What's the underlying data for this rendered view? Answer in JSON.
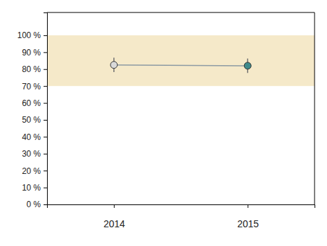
{
  "chart_data": {
    "type": "line",
    "categories": [
      "2014",
      "2015"
    ],
    "values": [
      82.5,
      82
    ],
    "lower": [
      78.3,
      77.8
    ],
    "upper": [
      86.8,
      86.3
    ],
    "colors": [
      "#d9d9d9",
      "#3f8b8c"
    ],
    "color": "#8c9aa3",
    "marker": "circle",
    "target_range": [
      70,
      100
    ],
    "ylim": [
      0,
      113.5
    ],
    "yticks": [
      {
        "value": 0,
        "label": "0 %"
      },
      {
        "value": 10,
        "label": "10 %"
      },
      {
        "value": 20,
        "label": "20 %"
      },
      {
        "value": 30,
        "label": "30 %"
      },
      {
        "value": 40,
        "label": "40 %"
      },
      {
        "value": 50,
        "label": "50 %"
      },
      {
        "value": 60,
        "label": "60 %"
      },
      {
        "value": 70,
        "label": "70 %"
      },
      {
        "value": 80,
        "label": "80 %"
      },
      {
        "value": 90,
        "label": "90 %"
      },
      {
        "value": 100,
        "label": "100 %"
      }
    ]
  }
}
